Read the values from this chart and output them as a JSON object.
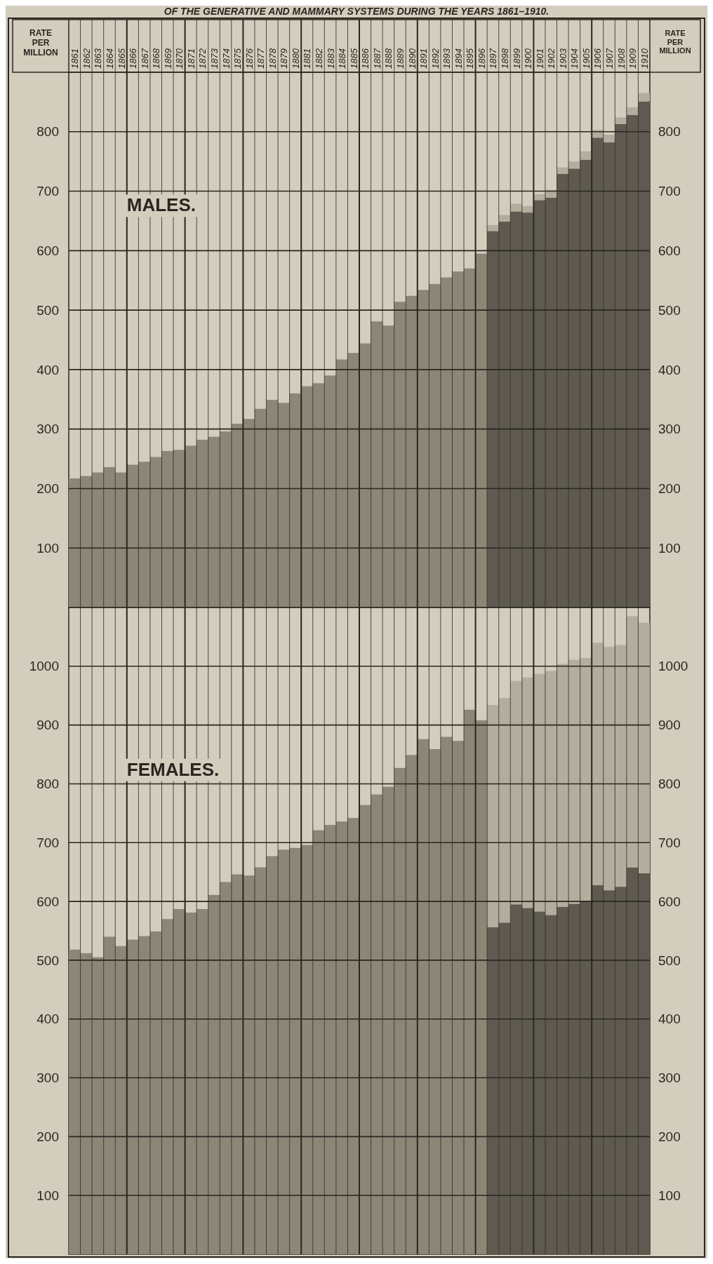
{
  "chart_data": [
    {
      "type": "bar",
      "title": "OF THE GENERATIVE AND MAMMARY SYSTEMS DURING THE YEARS 1861–1910.",
      "ylabel": "RATE PER MILLION",
      "y2label": "RATE PER MILLION",
      "annotations": [
        "MALES."
      ],
      "categories": [
        "1861",
        "1862",
        "1863",
        "1864",
        "1865",
        "1866",
        "1867",
        "1868",
        "1869",
        "1870",
        "1871",
        "1872",
        "1873",
        "1874",
        "1875",
        "1876",
        "1877",
        "1878",
        "1879",
        "1880",
        "1881",
        "1882",
        "1883",
        "1884",
        "1885",
        "1886",
        "1887",
        "1888",
        "1889",
        "1890",
        "1891",
        "1892",
        "1893",
        "1894",
        "1895",
        "1896",
        "1897",
        "1898",
        "1899",
        "1900",
        "1901",
        "1902",
        "1903",
        "1904",
        "1905",
        "1906",
        "1907",
        "1908",
        "1909",
        "1910"
      ],
      "stacked": true,
      "grid": true,
      "ylim": [
        0,
        900
      ],
      "yticks": [
        100,
        200,
        300,
        400,
        500,
        600,
        700,
        800
      ],
      "y2lim": [
        0,
        900
      ],
      "y2ticks": [
        100,
        200,
        300,
        400,
        500,
        600,
        700,
        800
      ],
      "series": [
        {
          "color": "#8c8677",
          "values": [
            217,
            221,
            227,
            236,
            227,
            240,
            245,
            253,
            263,
            265,
            272,
            282,
            287,
            296,
            309,
            317,
            334,
            349,
            344,
            360,
            372,
            377,
            390,
            417,
            428,
            444,
            481,
            474,
            514,
            524,
            534,
            544,
            555,
            565,
            570,
            595,
            null,
            null,
            null,
            null,
            null,
            null,
            null,
            null,
            null,
            null,
            null,
            null,
            null,
            null
          ]
        },
        {
          "color": "#5f5a50",
          "values": [
            null,
            null,
            null,
            null,
            null,
            null,
            null,
            null,
            null,
            null,
            null,
            null,
            null,
            null,
            null,
            null,
            null,
            null,
            null,
            null,
            null,
            null,
            null,
            null,
            null,
            null,
            null,
            null,
            null,
            null,
            null,
            null,
            null,
            null,
            null,
            null,
            633,
            649,
            666,
            664,
            685,
            689,
            729,
            738,
            753,
            790,
            782,
            813,
            828,
            851
          ]
        },
        {
          "color": "#b3ad9e",
          "values": [
            null,
            null,
            null,
            null,
            null,
            null,
            null,
            null,
            null,
            null,
            null,
            null,
            null,
            null,
            null,
            null,
            null,
            null,
            null,
            null,
            null,
            null,
            null,
            null,
            null,
            null,
            null,
            null,
            null,
            null,
            null,
            null,
            null,
            null,
            null,
            null,
            10,
            11,
            13,
            11,
            10,
            13,
            11,
            12,
            14,
            13,
            13,
            11,
            13,
            14
          ]
        }
      ]
    },
    {
      "type": "bar",
      "annotations": [
        "FEMALES."
      ],
      "tick_labels": "y",
      "categories": [
        null,
        null,
        null,
        null,
        null,
        null,
        null,
        null,
        null,
        null,
        null,
        null,
        null,
        null,
        null,
        null,
        null,
        null,
        null,
        null,
        null,
        null,
        null,
        null,
        null,
        null,
        null,
        null,
        null,
        null,
        null,
        null,
        null,
        null,
        null,
        null,
        null,
        null,
        null,
        null,
        null,
        null,
        null,
        null,
        null,
        null,
        null,
        null,
        null,
        null
      ],
      "stacked": true,
      "grid": true,
      "ylim": [
        0,
        1100
      ],
      "yticks": [
        100,
        200,
        300,
        400,
        500,
        600,
        700,
        800,
        900,
        1000
      ],
      "y2lim": [
        0,
        1100
      ],
      "y2ticks": [
        100,
        200,
        300,
        400,
        500,
        600,
        700,
        800,
        900,
        1000
      ],
      "series": [
        {
          "color": "#8c8677",
          "values": [
            518,
            512,
            505,
            540,
            524,
            535,
            541,
            549,
            570,
            587,
            581,
            587,
            611,
            633,
            646,
            644,
            658,
            677,
            688,
            691,
            696,
            721,
            730,
            736,
            742,
            764,
            782,
            795,
            827,
            849,
            876,
            859,
            880,
            873,
            926,
            908,
            null,
            null,
            null,
            null,
            null,
            null,
            null,
            null,
            null,
            null,
            null,
            null,
            null,
            null
          ]
        },
        {
          "color": "#5f5a50",
          "values": [
            null,
            null,
            null,
            null,
            null,
            null,
            null,
            null,
            null,
            null,
            null,
            null,
            null,
            null,
            null,
            null,
            null,
            null,
            null,
            null,
            null,
            null,
            null,
            null,
            null,
            null,
            null,
            null,
            null,
            null,
            null,
            null,
            null,
            null,
            null,
            null,
            556,
            564,
            595,
            589,
            583,
            577,
            591,
            596,
            601,
            628,
            619,
            625,
            658,
            648
          ]
        },
        {
          "color": "#b3ad9e",
          "values": [
            null,
            null,
            null,
            null,
            null,
            null,
            null,
            null,
            null,
            null,
            null,
            null,
            null,
            null,
            null,
            null,
            null,
            null,
            null,
            null,
            null,
            null,
            null,
            null,
            null,
            null,
            null,
            null,
            null,
            null,
            null,
            null,
            null,
            null,
            null,
            null,
            378,
            382,
            380,
            392,
            404,
            415,
            413,
            415,
            413,
            412,
            414,
            411,
            427,
            426
          ]
        }
      ]
    }
  ]
}
